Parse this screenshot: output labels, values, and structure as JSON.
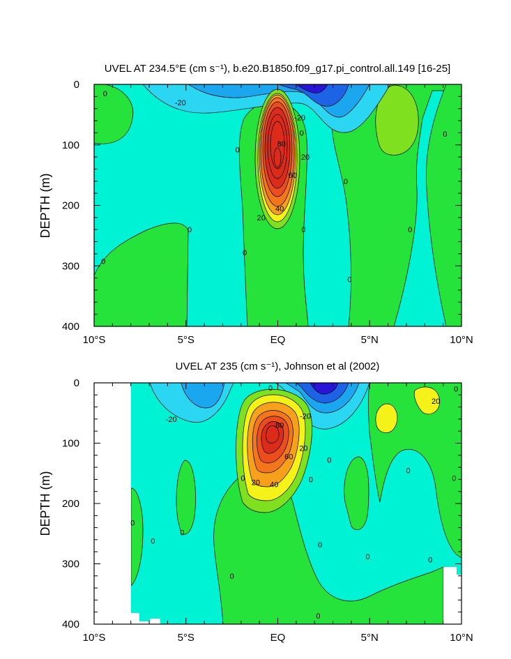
{
  "chart_data": [
    {
      "type": "contour",
      "title": "UVEL AT 234.5°E (cm s⁻¹), b.e20.B1850.f09_g17.pi_control.all.149 [16-25]",
      "ylabel": "DEPTH (m)",
      "xlabel": "",
      "x_ticks": [
        "10°S",
        "5°S",
        "EQ",
        "5°N",
        "10°N"
      ],
      "x_range_lat": [
        -10,
        10
      ],
      "y_ticks": [
        "0",
        "100",
        "200",
        "300",
        "400"
      ],
      "y_range_m": [
        0,
        400
      ],
      "y_inverted": true,
      "contour_interval": 10,
      "data_lat_range": [
        -10,
        10
      ],
      "contour_labels": [
        {
          "text": "0",
          "lat": -9.4,
          "depth": 15
        },
        {
          "text": "-20",
          "lat": -5.3,
          "depth": 30
        },
        {
          "text": "-20",
          "lat": 1.2,
          "depth": 55
        },
        {
          "text": "0",
          "lat": 1.3,
          "depth": 80
        },
        {
          "text": "0",
          "lat": 9.1,
          "depth": 82
        },
        {
          "text": "0",
          "lat": -2.2,
          "depth": 108
        },
        {
          "text": "80",
          "lat": 0.2,
          "depth": 98
        },
        {
          "text": "20",
          "lat": 1.5,
          "depth": 120
        },
        {
          "text": "60",
          "lat": 0.8,
          "depth": 150
        },
        {
          "text": "0",
          "lat": 3.7,
          "depth": 160
        },
        {
          "text": "20",
          "lat": -0.9,
          "depth": 220
        },
        {
          "text": "40",
          "lat": 0.1,
          "depth": 205
        },
        {
          "text": "0",
          "lat": -4.8,
          "depth": 240
        },
        {
          "text": "0",
          "lat": 1.4,
          "depth": 240
        },
        {
          "text": "0",
          "lat": 7.2,
          "depth": 240
        },
        {
          "text": "0",
          "lat": -1.8,
          "depth": 278
        },
        {
          "text": "0",
          "lat": -9.5,
          "depth": 292
        },
        {
          "text": "0",
          "lat": 3.9,
          "depth": 322
        }
      ]
    },
    {
      "type": "contour",
      "title": "UVEL AT 235 (cm s⁻¹), Johnson et al (2002)",
      "ylabel": "DEPTH (m)",
      "xlabel": "",
      "x_ticks": [
        "10°S",
        "5°S",
        "EQ",
        "5°N",
        "10°N"
      ],
      "x_range_lat": [
        -10,
        10
      ],
      "y_ticks": [
        "0",
        "100",
        "200",
        "300",
        "400"
      ],
      "y_range_m": [
        0,
        400
      ],
      "y_inverted": true,
      "contour_interval": 10,
      "data_lat_range": [
        -8,
        10
      ],
      "contour_labels": [
        {
          "text": "-20",
          "lat": -5.8,
          "depth": 60
        },
        {
          "text": "0",
          "lat": -0.4,
          "depth": 8
        },
        {
          "text": "-20",
          "lat": 1.5,
          "depth": 55
        },
        {
          "text": "80",
          "lat": 0.1,
          "depth": 70
        },
        {
          "text": "20",
          "lat": 1.4,
          "depth": 108
        },
        {
          "text": "60",
          "lat": 0.6,
          "depth": 122
        },
        {
          "text": "0",
          "lat": 2.8,
          "depth": 128
        },
        {
          "text": "0",
          "lat": 7.1,
          "depth": 145
        },
        {
          "text": "20",
          "lat": 8.6,
          "depth": 30
        },
        {
          "text": "0",
          "lat": 9.7,
          "depth": 10
        },
        {
          "text": "0",
          "lat": -1.9,
          "depth": 158
        },
        {
          "text": "0",
          "lat": 1.8,
          "depth": 160
        },
        {
          "text": "0",
          "lat": 9.6,
          "depth": 158
        },
        {
          "text": "20",
          "lat": -1.2,
          "depth": 165
        },
        {
          "text": "40",
          "lat": -0.2,
          "depth": 168
        },
        {
          "text": "0",
          "lat": -7.9,
          "depth": 232
        },
        {
          "text": "0",
          "lat": -5.2,
          "depth": 248
        },
        {
          "text": "0",
          "lat": -6.8,
          "depth": 262
        },
        {
          "text": "0",
          "lat": 2.3,
          "depth": 268
        },
        {
          "text": "0",
          "lat": 4.9,
          "depth": 288
        },
        {
          "text": "0",
          "lat": -2.5,
          "depth": 320
        },
        {
          "text": "0",
          "lat": 8.3,
          "depth": 293
        },
        {
          "text": "0",
          "lat": 2.2,
          "depth": 386
        }
      ]
    }
  ],
  "colors": {
    "background_zero_band": "#00f2d4",
    "weak_positive": "#25e33b",
    "moderate_positive": "#7fe01f",
    "yellow": "#f5f21a",
    "orange": "#f6a01b",
    "red": "#dc2b1a",
    "weak_negative": "#2ad6f2",
    "negative": "#1aa7ef",
    "strong_negative": "#1d63e6",
    "strongest_negative": "#2a14d6"
  }
}
